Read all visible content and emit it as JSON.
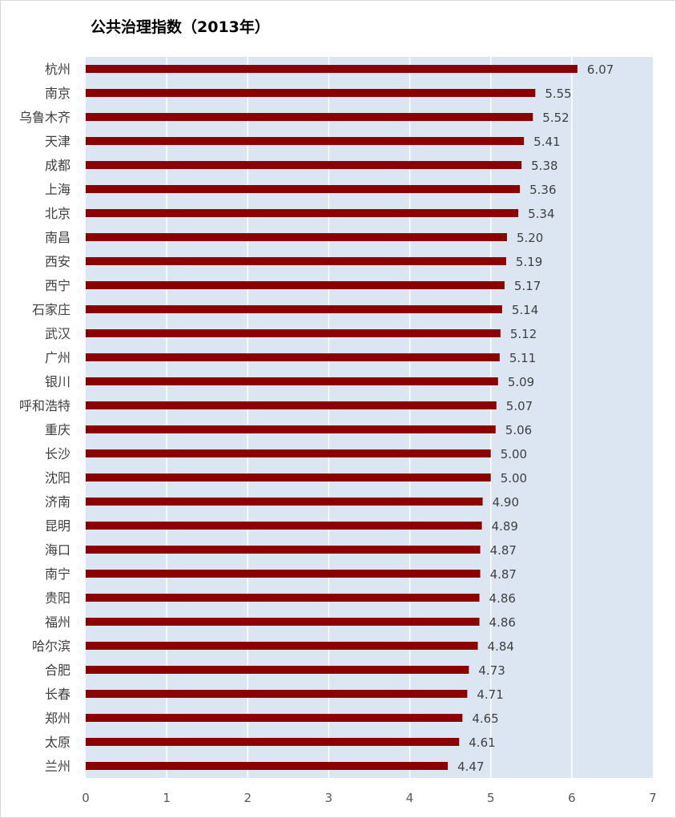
{
  "chart_data": {
    "type": "bar",
    "orientation": "horizontal",
    "title": "公共治理指数（2013年）",
    "categories": [
      "杭州",
      "南京",
      "乌鲁木齐",
      "天津",
      "成都",
      "上海",
      "北京",
      "南昌",
      "西安",
      "西宁",
      "石家庄",
      "武汉",
      "广州",
      "银川",
      "呼和浩特",
      "重庆",
      "长沙",
      "沈阳",
      "济南",
      "昆明",
      "海口",
      "南宁",
      "贵阳",
      "福州",
      "哈尔滨",
      "合肥",
      "长春",
      "郑州",
      "太原",
      "兰州"
    ],
    "values": [
      6.07,
      5.55,
      5.52,
      5.41,
      5.38,
      5.36,
      5.34,
      5.2,
      5.19,
      5.17,
      5.14,
      5.12,
      5.11,
      5.09,
      5.07,
      5.06,
      5.0,
      5.0,
      4.9,
      4.89,
      4.87,
      4.87,
      4.86,
      4.86,
      4.84,
      4.73,
      4.71,
      4.65,
      4.61,
      4.47
    ],
    "value_labels": [
      "6.07",
      "5.55",
      "5.52",
      "5.41",
      "5.38",
      "5.36",
      "5.34",
      "5.20",
      "5.19",
      "5.17",
      "5.14",
      "5.12",
      "5.11",
      "5.09",
      "5.07",
      "5.06",
      "5.00",
      "5.00",
      "4.90",
      "4.89",
      "4.87",
      "4.87",
      "4.86",
      "4.86",
      "4.84",
      "4.73",
      "4.71",
      "4.65",
      "4.61",
      "4.47"
    ],
    "xlim": [
      0,
      7
    ],
    "x_ticks": [
      "0",
      "1",
      "2",
      "3",
      "4",
      "5",
      "6",
      "7"
    ],
    "grid": "vertical",
    "colors": {
      "bar": "#8b0000",
      "plot_background": "#dce6f2",
      "gridline": "#ffffff"
    }
  }
}
